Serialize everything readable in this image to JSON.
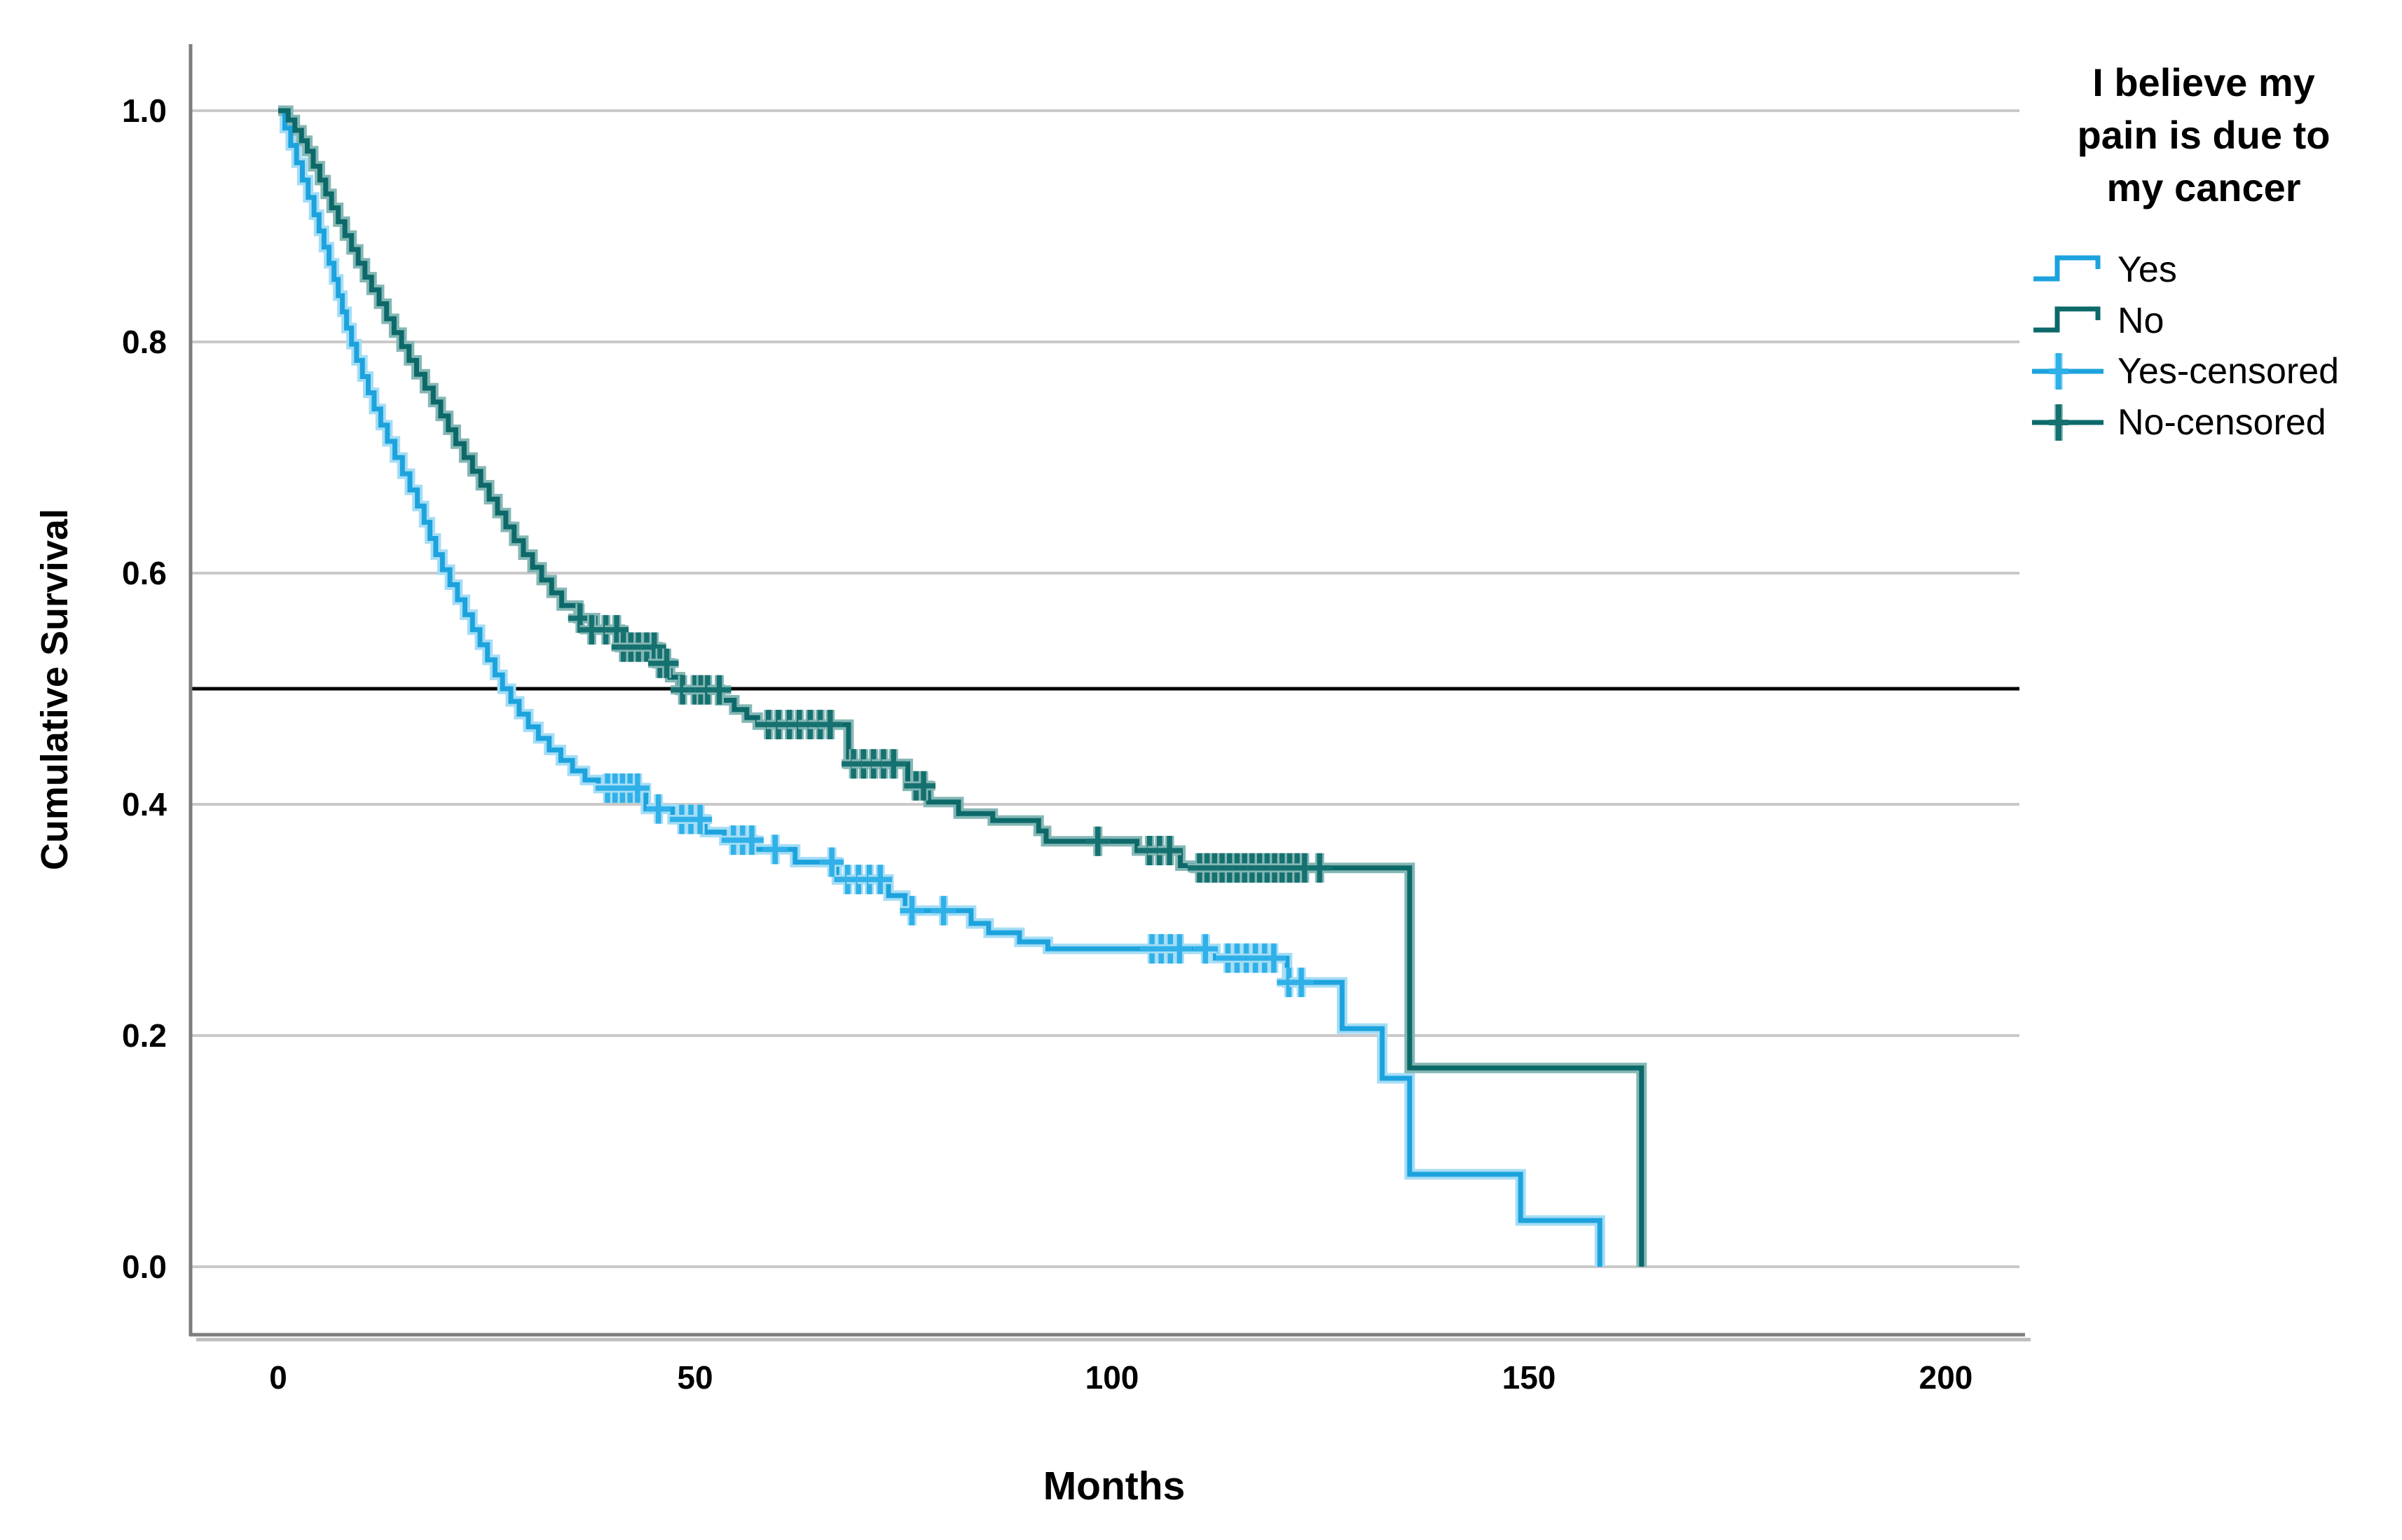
{
  "axes": {
    "x": {
      "title": "Months",
      "tick_labels": [
        "0",
        "50",
        "100",
        "150",
        "200"
      ],
      "tick_values": [
        0,
        50,
        100,
        150,
        200
      ]
    },
    "y": {
      "title": "Cumulative Survival",
      "tick_labels": [
        "1.0",
        "0.8",
        "0.6",
        "0.4",
        "0.2",
        "0.0"
      ],
      "tick_values": [
        1.0,
        0.8,
        0.6,
        0.4,
        0.2,
        0.0
      ]
    }
  },
  "legend": {
    "title_lines": [
      "I believe my",
      "pain is due to",
      "my cancer"
    ],
    "items": [
      {
        "label": "Yes",
        "glyph": "step",
        "series": 0
      },
      {
        "label": "No",
        "glyph": "step",
        "series": 1
      },
      {
        "label": "Yes-censored",
        "glyph": "censor",
        "series": 0
      },
      {
        "label": "No-censored",
        "glyph": "censor",
        "series": 1
      }
    ]
  },
  "chart_data": {
    "type": "line",
    "subtype": "kaplan-meier-step",
    "xlabel": "Months",
    "ylabel": "Cumulative Survival",
    "xlim": [
      -10.5,
      208.8
    ],
    "ylim": [
      -0.059,
      1.058
    ],
    "x_ticks": [
      0,
      50,
      100,
      150,
      200
    ],
    "y_ticks": [
      1.0,
      0.8,
      0.6,
      0.4,
      0.2,
      0.0
    ],
    "grid": "horizontal",
    "gridline_color": "#c9c9c9",
    "reference_line_y": 0.5,
    "reference_line_color": "#000000",
    "axis_color": "#7d7d7d",
    "axis_shadow_color": "#bdbdbd",
    "legend_position": "right",
    "series": [
      {
        "name": "Yes",
        "color": "#1ca3de",
        "halo": "#a5ddf5",
        "censor_color": "#2fb0e8",
        "steps": [
          [
            0,
            1.0
          ],
          [
            0.8,
            0.985
          ],
          [
            1.5,
            0.97
          ],
          [
            2.2,
            0.955
          ],
          [
            2.9,
            0.94
          ],
          [
            3.6,
            0.925
          ],
          [
            4.3,
            0.91
          ],
          [
            4.9,
            0.896
          ],
          [
            5.5,
            0.882
          ],
          [
            6.1,
            0.868
          ],
          [
            6.7,
            0.854
          ],
          [
            7.2,
            0.84
          ],
          [
            7.7,
            0.826
          ],
          [
            8.2,
            0.812
          ],
          [
            8.8,
            0.798
          ],
          [
            9.4,
            0.784
          ],
          [
            10.1,
            0.77
          ],
          [
            10.8,
            0.756
          ],
          [
            11.5,
            0.742
          ],
          [
            12.3,
            0.728
          ],
          [
            13.1,
            0.714
          ],
          [
            14,
            0.7
          ],
          [
            14.9,
            0.686
          ],
          [
            15.8,
            0.672
          ],
          [
            16.7,
            0.658
          ],
          [
            17.5,
            0.644
          ],
          [
            18.2,
            0.63
          ],
          [
            18.9,
            0.616
          ],
          [
            19.7,
            0.603
          ],
          [
            20.6,
            0.59
          ],
          [
            21.5,
            0.577
          ],
          [
            22.4,
            0.564
          ],
          [
            23.3,
            0.551
          ],
          [
            24.2,
            0.538
          ],
          [
            25.1,
            0.525
          ],
          [
            26,
            0.512
          ],
          [
            26.9,
            0.5
          ],
          [
            27.9,
            0.489
          ],
          [
            28.9,
            0.478
          ],
          [
            30,
            0.467
          ],
          [
            31.2,
            0.457
          ],
          [
            32.5,
            0.447
          ],
          [
            33.9,
            0.438
          ],
          [
            35.3,
            0.429
          ],
          [
            36.8,
            0.421
          ],
          [
            38.4,
            0.414
          ],
          [
            44.1,
            0.396
          ],
          [
            47.3,
            0.387
          ],
          [
            51.2,
            0.376
          ],
          [
            53.5,
            0.369
          ],
          [
            57,
            0.361
          ],
          [
            62,
            0.35
          ],
          [
            67,
            0.335
          ],
          [
            73.2,
            0.321
          ],
          [
            75.2,
            0.308
          ],
          [
            83.1,
            0.297
          ],
          [
            85.2,
            0.289
          ],
          [
            88.9,
            0.281
          ],
          [
            92.3,
            0.275
          ],
          [
            112.4,
            0.267
          ],
          [
            121,
            0.246
          ],
          [
            127.6,
            0.206
          ],
          [
            132.4,
            0.163
          ],
          [
            135.7,
            0.08
          ],
          [
            149,
            0.04
          ],
          [
            158.5,
            0.0
          ]
        ],
        "censors": [
          [
            39.5,
            0.414
          ],
          [
            40.4,
            0.414
          ],
          [
            41.3,
            0.414
          ],
          [
            42.2,
            0.414
          ],
          [
            43.1,
            0.414
          ],
          [
            45.6,
            0.396
          ],
          [
            48.4,
            0.387
          ],
          [
            49.5,
            0.387
          ],
          [
            50.6,
            0.387
          ],
          [
            54.6,
            0.369
          ],
          [
            55.7,
            0.369
          ],
          [
            56.8,
            0.369
          ],
          [
            59.6,
            0.361
          ],
          [
            66.4,
            0.35
          ],
          [
            68.3,
            0.335
          ],
          [
            69.6,
            0.335
          ],
          [
            70.9,
            0.335
          ],
          [
            72.2,
            0.335
          ],
          [
            76,
            0.308
          ],
          [
            79.8,
            0.308
          ],
          [
            104.8,
            0.275
          ],
          [
            105.9,
            0.275
          ],
          [
            107,
            0.275
          ],
          [
            108.1,
            0.275
          ],
          [
            111.2,
            0.275
          ],
          [
            113.9,
            0.267
          ],
          [
            115,
            0.267
          ],
          [
            116.1,
            0.267
          ],
          [
            117.2,
            0.267
          ],
          [
            118.3,
            0.267
          ],
          [
            119.4,
            0.267
          ],
          [
            121.2,
            0.246
          ],
          [
            122.7,
            0.246
          ]
        ]
      },
      {
        "name": "No",
        "color": "#0d6969",
        "halo": "#85b7b5",
        "censor_color": "#15716f",
        "steps": [
          [
            0,
            1.0
          ],
          [
            1.2,
            0.992
          ],
          [
            2,
            0.983
          ],
          [
            2.8,
            0.974
          ],
          [
            3.5,
            0.965
          ],
          [
            4.2,
            0.952
          ],
          [
            5,
            0.94
          ],
          [
            5.7,
            0.928
          ],
          [
            6.4,
            0.916
          ],
          [
            7.2,
            0.904
          ],
          [
            8,
            0.892
          ],
          [
            8.8,
            0.88
          ],
          [
            9.6,
            0.868
          ],
          [
            10.4,
            0.856
          ],
          [
            11.2,
            0.845
          ],
          [
            12.1,
            0.833
          ],
          [
            13,
            0.82
          ],
          [
            13.9,
            0.808
          ],
          [
            14.8,
            0.796
          ],
          [
            15.7,
            0.784
          ],
          [
            16.6,
            0.772
          ],
          [
            17.6,
            0.76
          ],
          [
            18.6,
            0.748
          ],
          [
            19.5,
            0.736
          ],
          [
            20.4,
            0.724
          ],
          [
            21.3,
            0.712
          ],
          [
            22.3,
            0.7
          ],
          [
            23.3,
            0.688
          ],
          [
            24.3,
            0.676
          ],
          [
            25.3,
            0.664
          ],
          [
            26.3,
            0.652
          ],
          [
            27.3,
            0.64
          ],
          [
            28.3,
            0.628
          ],
          [
            29.4,
            0.616
          ],
          [
            30.5,
            0.605
          ],
          [
            31.6,
            0.594
          ],
          [
            32.8,
            0.583
          ],
          [
            34,
            0.572
          ],
          [
            36,
            0.561
          ],
          [
            38,
            0.551
          ],
          [
            41,
            0.536
          ],
          [
            45.5,
            0.522
          ],
          [
            47,
            0.51
          ],
          [
            48.2,
            0.499
          ],
          [
            53,
            0.49
          ],
          [
            54.7,
            0.482
          ],
          [
            56.2,
            0.475
          ],
          [
            57.5,
            0.469
          ],
          [
            68.4,
            0.435
          ],
          [
            75.5,
            0.416
          ],
          [
            78,
            0.402
          ],
          [
            81.6,
            0.392
          ],
          [
            85.7,
            0.386
          ],
          [
            91.2,
            0.377
          ],
          [
            92.1,
            0.368
          ],
          [
            103,
            0.36
          ],
          [
            108.2,
            0.347
          ],
          [
            110,
            0.345
          ],
          [
            135.7,
            0.172
          ],
          [
            163.5,
            0.0
          ]
        ],
        "censors": [
          [
            36.2,
            0.561
          ],
          [
            37.6,
            0.551
          ],
          [
            39.3,
            0.551
          ],
          [
            40.6,
            0.551
          ],
          [
            41.4,
            0.536
          ],
          [
            42.3,
            0.536
          ],
          [
            43.2,
            0.536
          ],
          [
            44.2,
            0.536
          ],
          [
            45.1,
            0.536
          ],
          [
            45.8,
            0.522
          ],
          [
            46.6,
            0.522
          ],
          [
            48.5,
            0.499
          ],
          [
            50,
            0.499
          ],
          [
            50.7,
            0.499
          ],
          [
            51.5,
            0.499
          ],
          [
            52.9,
            0.499
          ],
          [
            58.8,
            0.469
          ],
          [
            60,
            0.469
          ],
          [
            61.3,
            0.469
          ],
          [
            62.5,
            0.469
          ],
          [
            63.8,
            0.469
          ],
          [
            65,
            0.469
          ],
          [
            66.2,
            0.469
          ],
          [
            69,
            0.435
          ],
          [
            70.2,
            0.435
          ],
          [
            71.4,
            0.435
          ],
          [
            72.6,
            0.435
          ],
          [
            73.8,
            0.435
          ],
          [
            76.5,
            0.416
          ],
          [
            77.4,
            0.416
          ],
          [
            98.3,
            0.368
          ],
          [
            104.5,
            0.36
          ],
          [
            105.7,
            0.36
          ],
          [
            106.9,
            0.36
          ],
          [
            110.5,
            0.345
          ],
          [
            111.4,
            0.345
          ],
          [
            112.3,
            0.345
          ],
          [
            113.2,
            0.345
          ],
          [
            114.1,
            0.345
          ],
          [
            115,
            0.345
          ],
          [
            115.9,
            0.345
          ],
          [
            116.8,
            0.345
          ],
          [
            117.7,
            0.345
          ],
          [
            118.6,
            0.345
          ],
          [
            119.5,
            0.345
          ],
          [
            120.4,
            0.345
          ],
          [
            121.3,
            0.345
          ],
          [
            122.2,
            0.345
          ],
          [
            123.1,
            0.345
          ],
          [
            124.9,
            0.345
          ]
        ]
      }
    ]
  }
}
